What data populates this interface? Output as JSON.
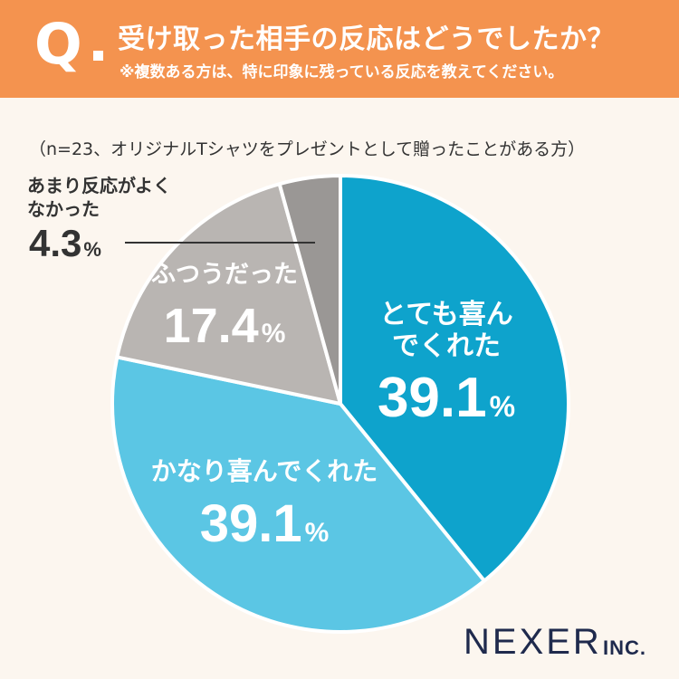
{
  "header": {
    "q_mark": "Q",
    "title": "受け取った相手の反応はどうでしたか？",
    "note": "※複数ある方は、特に印象に残っている反応を教えてください。"
  },
  "sample_note": "（n=23、オリジナルTシャツをプレゼントとして贈ったことがある方）",
  "brand": {
    "name": "NEXER",
    "suffix": "INC."
  },
  "colors": {
    "header": "#f4934f",
    "background": "#fcf6ef",
    "slice_1": "#0ea3cc",
    "slice_2": "#5bc6e4",
    "slice_3": "#b9b5b2",
    "slice_4": "#9a9795",
    "label_text": "#ffffff",
    "external_text": "#333333",
    "brand": "#1f2a4d"
  },
  "chart_data": {
    "type": "pie",
    "title": "受け取った相手の反応はどうでしたか？",
    "unit": "%",
    "slices": [
      {
        "label": "とても喜んでくれた",
        "value": 39.1,
        "color": "#0ea3cc"
      },
      {
        "label": "かなり喜んでくれた",
        "value": 39.1,
        "color": "#5bc6e4"
      },
      {
        "label": "ふつうだった",
        "value": 17.4,
        "color": "#b9b5b2"
      },
      {
        "label": "あまり反応がよくなかった",
        "value": 4.3,
        "color": "#9a9795"
      }
    ],
    "start": "12 o'clock",
    "direction": "clockwise",
    "legend": "none"
  }
}
